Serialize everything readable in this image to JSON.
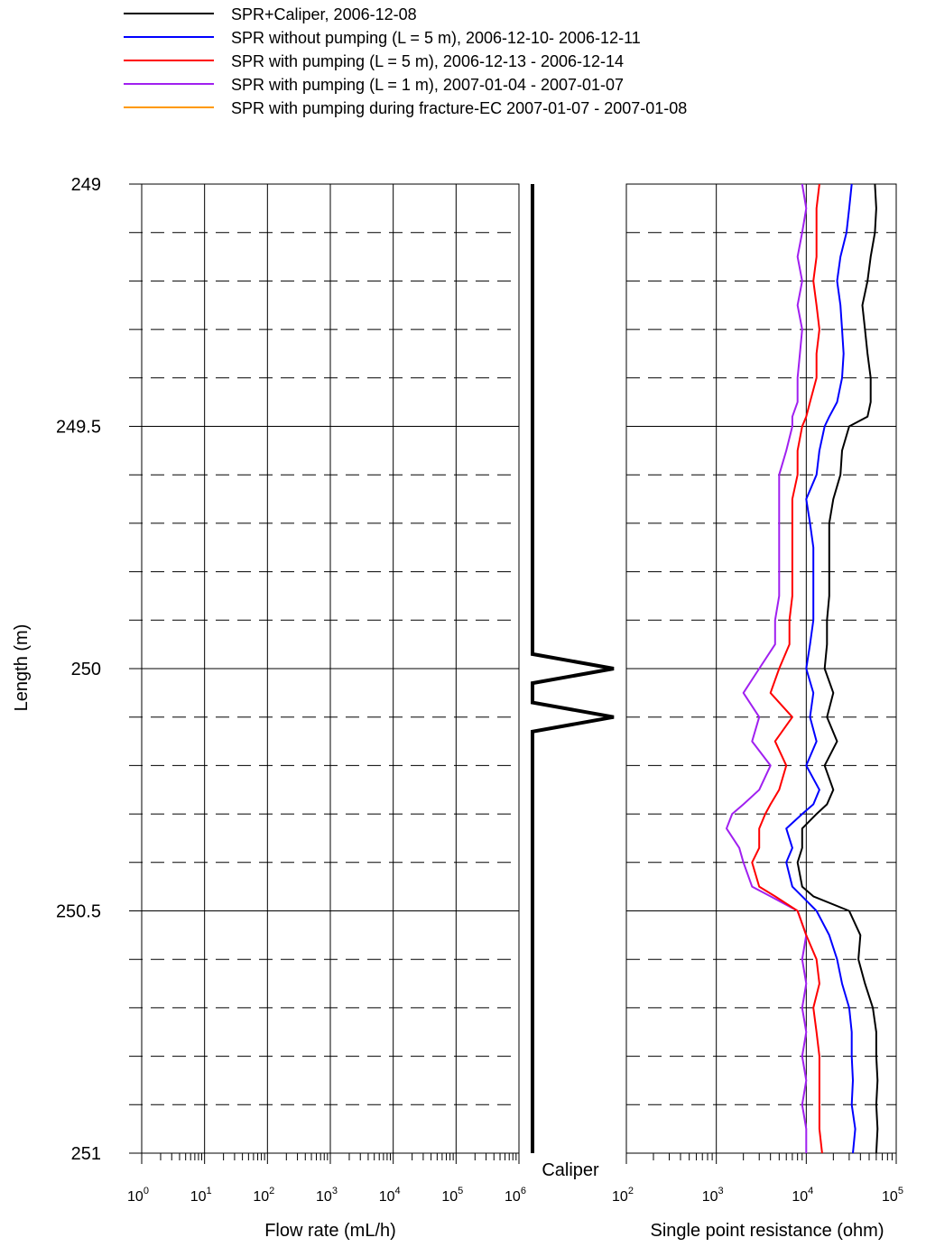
{
  "legend": [
    {
      "label": "SPR+Caliper, 2006-12-08",
      "color": "#000000"
    },
    {
      "label": "SPR without pumping (L = 5 m), 2006-12-10- 2006-12-11",
      "color": "#0000ff"
    },
    {
      "label": "SPR with pumping (L = 5 m), 2006-12-13 - 2006-12-14",
      "color": "#ff0000"
    },
    {
      "label": "SPR with pumping (L = 1 m), 2007-01-04 - 2007-01-07",
      "color": "#a020f0"
    },
    {
      "label": "SPR with pumping during fracture-EC 2007-01-07 - 2007-01-08",
      "color": "#ff9900"
    }
  ],
  "chart_data": [
    {
      "type": "line",
      "title": "",
      "ylabel": "Length (m)",
      "xlabel": "Flow rate (mL/h)",
      "xscale": "log",
      "xlim": [
        1,
        1000000
      ],
      "ylim": [
        249,
        251
      ],
      "y_inverted": true,
      "y_ticks": [
        "249",
        "249.5",
        "250",
        "250.5",
        "251"
      ],
      "x_ticks": [
        {
          "base": "10",
          "exp": "0"
        },
        {
          "base": "10",
          "exp": "1"
        },
        {
          "base": "10",
          "exp": "2"
        },
        {
          "base": "10",
          "exp": "3"
        },
        {
          "base": "10",
          "exp": "4"
        },
        {
          "base": "10",
          "exp": "5"
        },
        {
          "base": "10",
          "exp": "6"
        }
      ],
      "series": []
    },
    {
      "type": "line",
      "title": "Caliper",
      "ylim": [
        249,
        251
      ],
      "caliper_label": "Caliper",
      "series": [
        {
          "name": "Caliper",
          "color": "#000000",
          "points": [
            [
              0.0,
              249.0
            ],
            [
              0.0,
              249.97
            ],
            [
              1.0,
              250.0
            ],
            [
              0.0,
              250.03
            ],
            [
              0.0,
              250.07
            ],
            [
              1.0,
              250.1
            ],
            [
              0.0,
              250.13
            ],
            [
              0.0,
              251.0
            ]
          ]
        }
      ]
    },
    {
      "type": "line",
      "title": "",
      "xlabel": "Single point resistance (ohm)",
      "xscale": "log",
      "xlim": [
        100,
        100000
      ],
      "ylim": [
        249,
        251
      ],
      "x_ticks": [
        {
          "base": "10",
          "exp": "2"
        },
        {
          "base": "10",
          "exp": "3"
        },
        {
          "base": "10",
          "exp": "4"
        },
        {
          "base": "10",
          "exp": "5"
        }
      ],
      "series": [
        {
          "name": "SPR+Caliper, 2006-12-08",
          "color": "#000000",
          "points": [
            [
              58000,
              249.0
            ],
            [
              60000,
              249.05
            ],
            [
              58000,
              249.1
            ],
            [
              52000,
              249.15
            ],
            [
              48000,
              249.2
            ],
            [
              42000,
              249.25
            ],
            [
              45000,
              249.3
            ],
            [
              48000,
              249.35
            ],
            [
              52000,
              249.4
            ],
            [
              52000,
              249.45
            ],
            [
              48000,
              249.48
            ],
            [
              30000,
              249.5
            ],
            [
              25000,
              249.55
            ],
            [
              24000,
              249.6
            ],
            [
              20000,
              249.65
            ],
            [
              18000,
              249.7
            ],
            [
              18000,
              249.75
            ],
            [
              18000,
              249.8
            ],
            [
              18000,
              249.85
            ],
            [
              17000,
              249.9
            ],
            [
              17000,
              249.95
            ],
            [
              16000,
              250.0
            ],
            [
              20000,
              250.05
            ],
            [
              17000,
              250.1
            ],
            [
              22000,
              250.15
            ],
            [
              16000,
              250.2
            ],
            [
              20000,
              250.25
            ],
            [
              17000,
              250.28
            ],
            [
              13000,
              250.3
            ],
            [
              9000,
              250.33
            ],
            [
              9000,
              250.37
            ],
            [
              8000,
              250.4
            ],
            [
              9000,
              250.45
            ],
            [
              12000,
              250.47
            ],
            [
              30000,
              250.5
            ],
            [
              40000,
              250.55
            ],
            [
              38000,
              250.6
            ],
            [
              45000,
              250.65
            ],
            [
              55000,
              250.7
            ],
            [
              60000,
              250.75
            ],
            [
              60000,
              250.8
            ],
            [
              62000,
              250.85
            ],
            [
              60000,
              250.9
            ],
            [
              62000,
              250.95
            ],
            [
              60000,
              251.0
            ]
          ]
        },
        {
          "name": "SPR without pumping (L = 5 m), 2006-12-10- 2006-12-11",
          "color": "#0000ff",
          "points": [
            [
              32000,
              249.0
            ],
            [
              30000,
              249.05
            ],
            [
              28000,
              249.1
            ],
            [
              24000,
              249.15
            ],
            [
              22000,
              249.2
            ],
            [
              24000,
              249.25
            ],
            [
              25000,
              249.3
            ],
            [
              26000,
              249.35
            ],
            [
              25000,
              249.4
            ],
            [
              22000,
              249.45
            ],
            [
              18000,
              249.48
            ],
            [
              16000,
              249.5
            ],
            [
              14000,
              249.55
            ],
            [
              13000,
              249.6
            ],
            [
              10000,
              249.65
            ],
            [
              11000,
              249.7
            ],
            [
              12000,
              249.75
            ],
            [
              12000,
              249.8
            ],
            [
              12000,
              249.85
            ],
            [
              12000,
              249.9
            ],
            [
              11000,
              249.95
            ],
            [
              10000,
              250.0
            ],
            [
              12000,
              250.05
            ],
            [
              11000,
              250.1
            ],
            [
              13000,
              250.15
            ],
            [
              10000,
              250.2
            ],
            [
              14000,
              250.25
            ],
            [
              12000,
              250.28
            ],
            [
              9000,
              250.3
            ],
            [
              6000,
              250.33
            ],
            [
              7000,
              250.37
            ],
            [
              6000,
              250.4
            ],
            [
              7000,
              250.45
            ],
            [
              9000,
              250.47
            ],
            [
              13000,
              250.5
            ],
            [
              18000,
              250.55
            ],
            [
              22000,
              250.6
            ],
            [
              25000,
              250.65
            ],
            [
              30000,
              250.7
            ],
            [
              32000,
              250.75
            ],
            [
              32000,
              250.8
            ],
            [
              33000,
              250.85
            ],
            [
              32000,
              250.9
            ],
            [
              35000,
              250.95
            ],
            [
              33000,
              251.0
            ]
          ]
        },
        {
          "name": "SPR with pumping (L = 5 m), 2006-12-13 - 2006-12-14",
          "color": "#ff0000",
          "points": [
            [
              14000,
              249.0
            ],
            [
              13000,
              249.05
            ],
            [
              13000,
              249.1
            ],
            [
              13000,
              249.15
            ],
            [
              12000,
              249.2
            ],
            [
              13000,
              249.25
            ],
            [
              14000,
              249.3
            ],
            [
              13000,
              249.35
            ],
            [
              13000,
              249.4
            ],
            [
              11000,
              249.45
            ],
            [
              10000,
              249.48
            ],
            [
              9000,
              249.5
            ],
            [
              8000,
              249.55
            ],
            [
              8000,
              249.6
            ],
            [
              7000,
              249.65
            ],
            [
              7000,
              249.7
            ],
            [
              7000,
              249.75
            ],
            [
              7000,
              249.8
            ],
            [
              7000,
              249.85
            ],
            [
              6500,
              249.9
            ],
            [
              6500,
              249.95
            ],
            [
              5000,
              250.0
            ],
            [
              4000,
              250.05
            ],
            [
              7000,
              250.1
            ],
            [
              4500,
              250.15
            ],
            [
              6000,
              250.2
            ],
            [
              5000,
              250.25
            ],
            [
              4000,
              250.28
            ],
            [
              3500,
              250.3
            ],
            [
              3000,
              250.33
            ],
            [
              3000,
              250.37
            ],
            [
              2500,
              250.4
            ],
            [
              3000,
              250.45
            ],
            [
              4500,
              250.47
            ],
            [
              8000,
              250.5
            ],
            [
              10000,
              250.55
            ],
            [
              13000,
              250.6
            ],
            [
              14000,
              250.65
            ],
            [
              12000,
              250.7
            ],
            [
              13000,
              250.75
            ],
            [
              14000,
              250.8
            ],
            [
              14000,
              250.85
            ],
            [
              14000,
              250.9
            ],
            [
              14000,
              250.95
            ],
            [
              15000,
              251.0
            ]
          ]
        },
        {
          "name": "SPR with pumping (L = 1 m), 2007-01-04 - 2007-01-07",
          "color": "#a020f0",
          "points": [
            [
              9000,
              249.0
            ],
            [
              10000,
              249.05
            ],
            [
              9000,
              249.1
            ],
            [
              8000,
              249.15
            ],
            [
              9000,
              249.2
            ],
            [
              8000,
              249.25
            ],
            [
              9000,
              249.3
            ],
            [
              8500,
              249.35
            ],
            [
              8000,
              249.4
            ],
            [
              8000,
              249.45
            ],
            [
              7000,
              249.48
            ],
            [
              7000,
              249.5
            ],
            [
              6000,
              249.55
            ],
            [
              5000,
              249.6
            ],
            [
              5000,
              249.65
            ],
            [
              5000,
              249.7
            ],
            [
              5000,
              249.75
            ],
            [
              5000,
              249.8
            ],
            [
              5000,
              249.85
            ],
            [
              4500,
              249.9
            ],
            [
              4500,
              249.95
            ],
            [
              3000,
              250.0
            ],
            [
              2000,
              250.05
            ],
            [
              3000,
              250.1
            ],
            [
              2500,
              250.15
            ],
            [
              4000,
              250.2
            ],
            [
              3000,
              250.25
            ],
            [
              2000,
              250.28
            ],
            [
              1500,
              250.3
            ],
            [
              1300,
              250.33
            ],
            [
              1800,
              250.37
            ],
            [
              2000,
              250.4
            ],
            [
              2500,
              250.45
            ],
            [
              4000,
              250.47
            ],
            [
              8000,
              250.5
            ],
            [
              10000,
              250.55
            ],
            [
              9000,
              250.6
            ],
            [
              10000,
              250.65
            ],
            [
              9000,
              250.7
            ],
            [
              10000,
              250.75
            ],
            [
              9000,
              250.8
            ],
            [
              10000,
              250.85
            ],
            [
              9000,
              250.9
            ],
            [
              10000,
              250.95
            ],
            [
              10000,
              251.0
            ]
          ]
        }
      ]
    }
  ]
}
